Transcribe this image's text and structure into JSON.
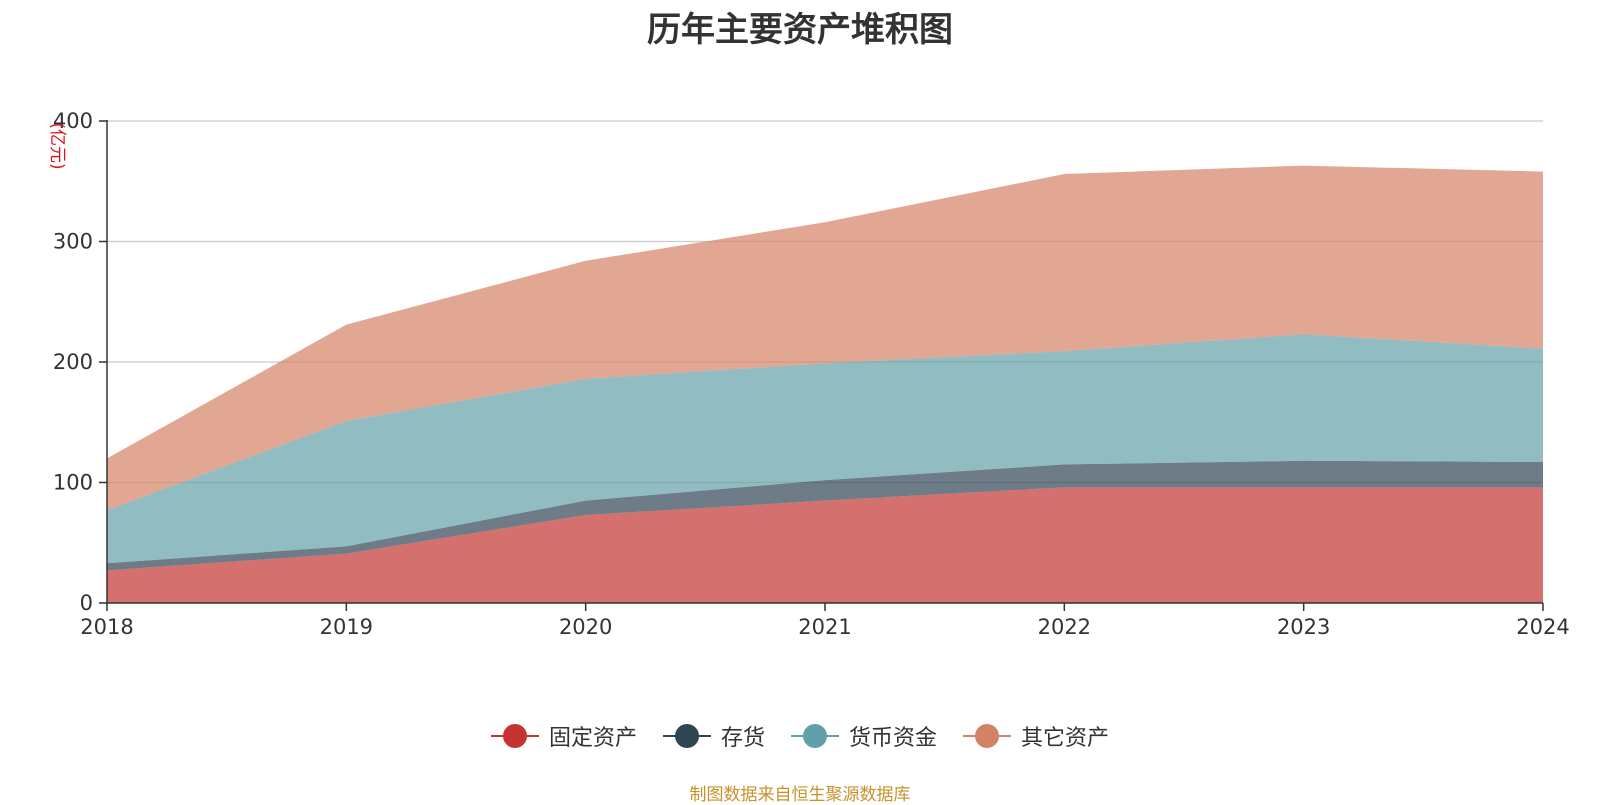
{
  "chart_data": {
    "type": "area",
    "stacked": true,
    "title": "历年主要资产堆积图",
    "unit_label": "(亿元)",
    "x": [
      "2018",
      "2019",
      "2020",
      "2021",
      "2022",
      "2023",
      "2024"
    ],
    "y_ticks": [
      0,
      100,
      200,
      300,
      400
    ],
    "ylim": [
      0,
      400
    ],
    "grid": true,
    "legend_position": "bottom",
    "series": [
      {
        "name": "固定资产",
        "color": "#c23531",
        "legend_color": "#c23531",
        "values": [
          27,
          41,
          73,
          85,
          96,
          96,
          96
        ]
      },
      {
        "name": "存货",
        "color": "#2f4554",
        "legend_color": "#2f4554",
        "values": [
          6,
          6,
          12,
          17,
          19,
          22,
          21
        ]
      },
      {
        "name": "货币资金",
        "color": "#61a0a8",
        "legend_color": "#61a0a8",
        "values": [
          44,
          104,
          101,
          97,
          94,
          105,
          94
        ]
      },
      {
        "name": "其它资产",
        "color": "#d48265",
        "legend_color": "#d48265",
        "values": [
          43,
          80,
          98,
          117,
          147,
          140,
          147
        ]
      }
    ]
  },
  "footer": {
    "source": "制图数据来自恒生聚源数据库"
  }
}
